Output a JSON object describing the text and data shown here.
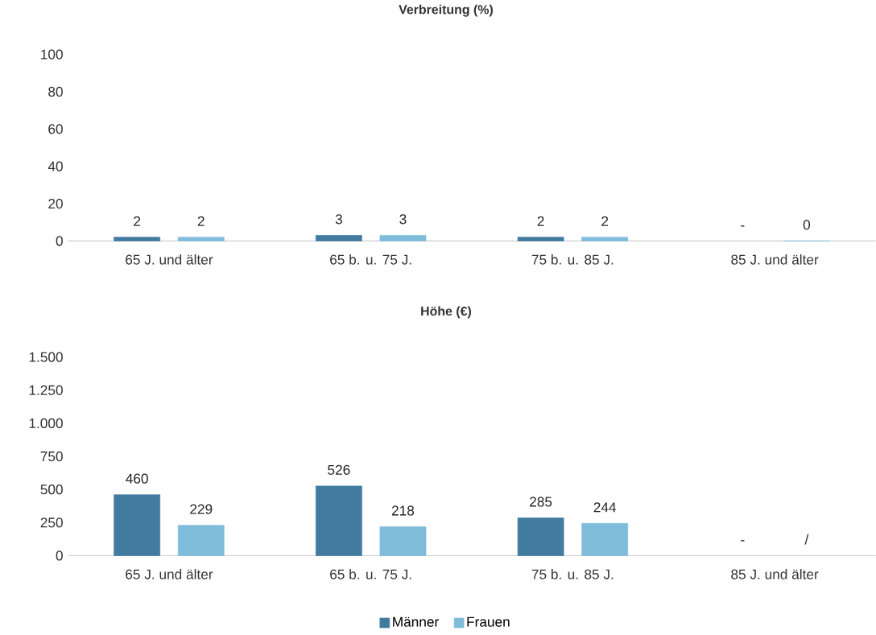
{
  "chart_data": [
    {
      "type": "bar",
      "title": "Verbreitung (%)",
      "categories": [
        "65 J. und älter",
        "65 b. u. 75 J.",
        "75 b. u. 85 J.",
        "85 J. und älter"
      ],
      "series": [
        {
          "color": "#417ba0",
          "values": [
            2,
            3,
            2,
            null
          ],
          "value_labels": [
            "2",
            "3",
            "2",
            "-"
          ]
        },
        {
          "color": "#7fbcda",
          "values": [
            2,
            3,
            2,
            0
          ],
          "value_labels": [
            "2",
            "3",
            "2",
            "0"
          ]
        }
      ],
      "ylim": [
        0,
        100
      ],
      "yticks": [
        0,
        20,
        40,
        60,
        80,
        100
      ]
    },
    {
      "type": "bar",
      "title": "Höhe (€)",
      "categories": [
        "65 J. und älter",
        "65 b. u. 75 J.",
        "75 b. u. 85 J.",
        "85 J. und älter"
      ],
      "series": [
        {
          "name": "Männer",
          "color": "#417ba0",
          "values": [
            460,
            526,
            285,
            null
          ],
          "value_labels": [
            "460",
            "526",
            "285",
            "-"
          ]
        },
        {
          "name": "Frauen",
          "color": "#7fbcda",
          "values": [
            229,
            218,
            244,
            null
          ],
          "value_labels": [
            "229",
            "218",
            "244",
            "/"
          ]
        }
      ],
      "ylim": [
        0,
        1500
      ],
      "yticks": [
        0,
        250,
        500,
        750,
        {
          "value": 1000,
          "label": "1.000"
        },
        {
          "value": 1250,
          "label": "1.250"
        },
        {
          "value": 1500,
          "label": "1.500"
        }
      ],
      "legend": "bottom"
    }
  ]
}
